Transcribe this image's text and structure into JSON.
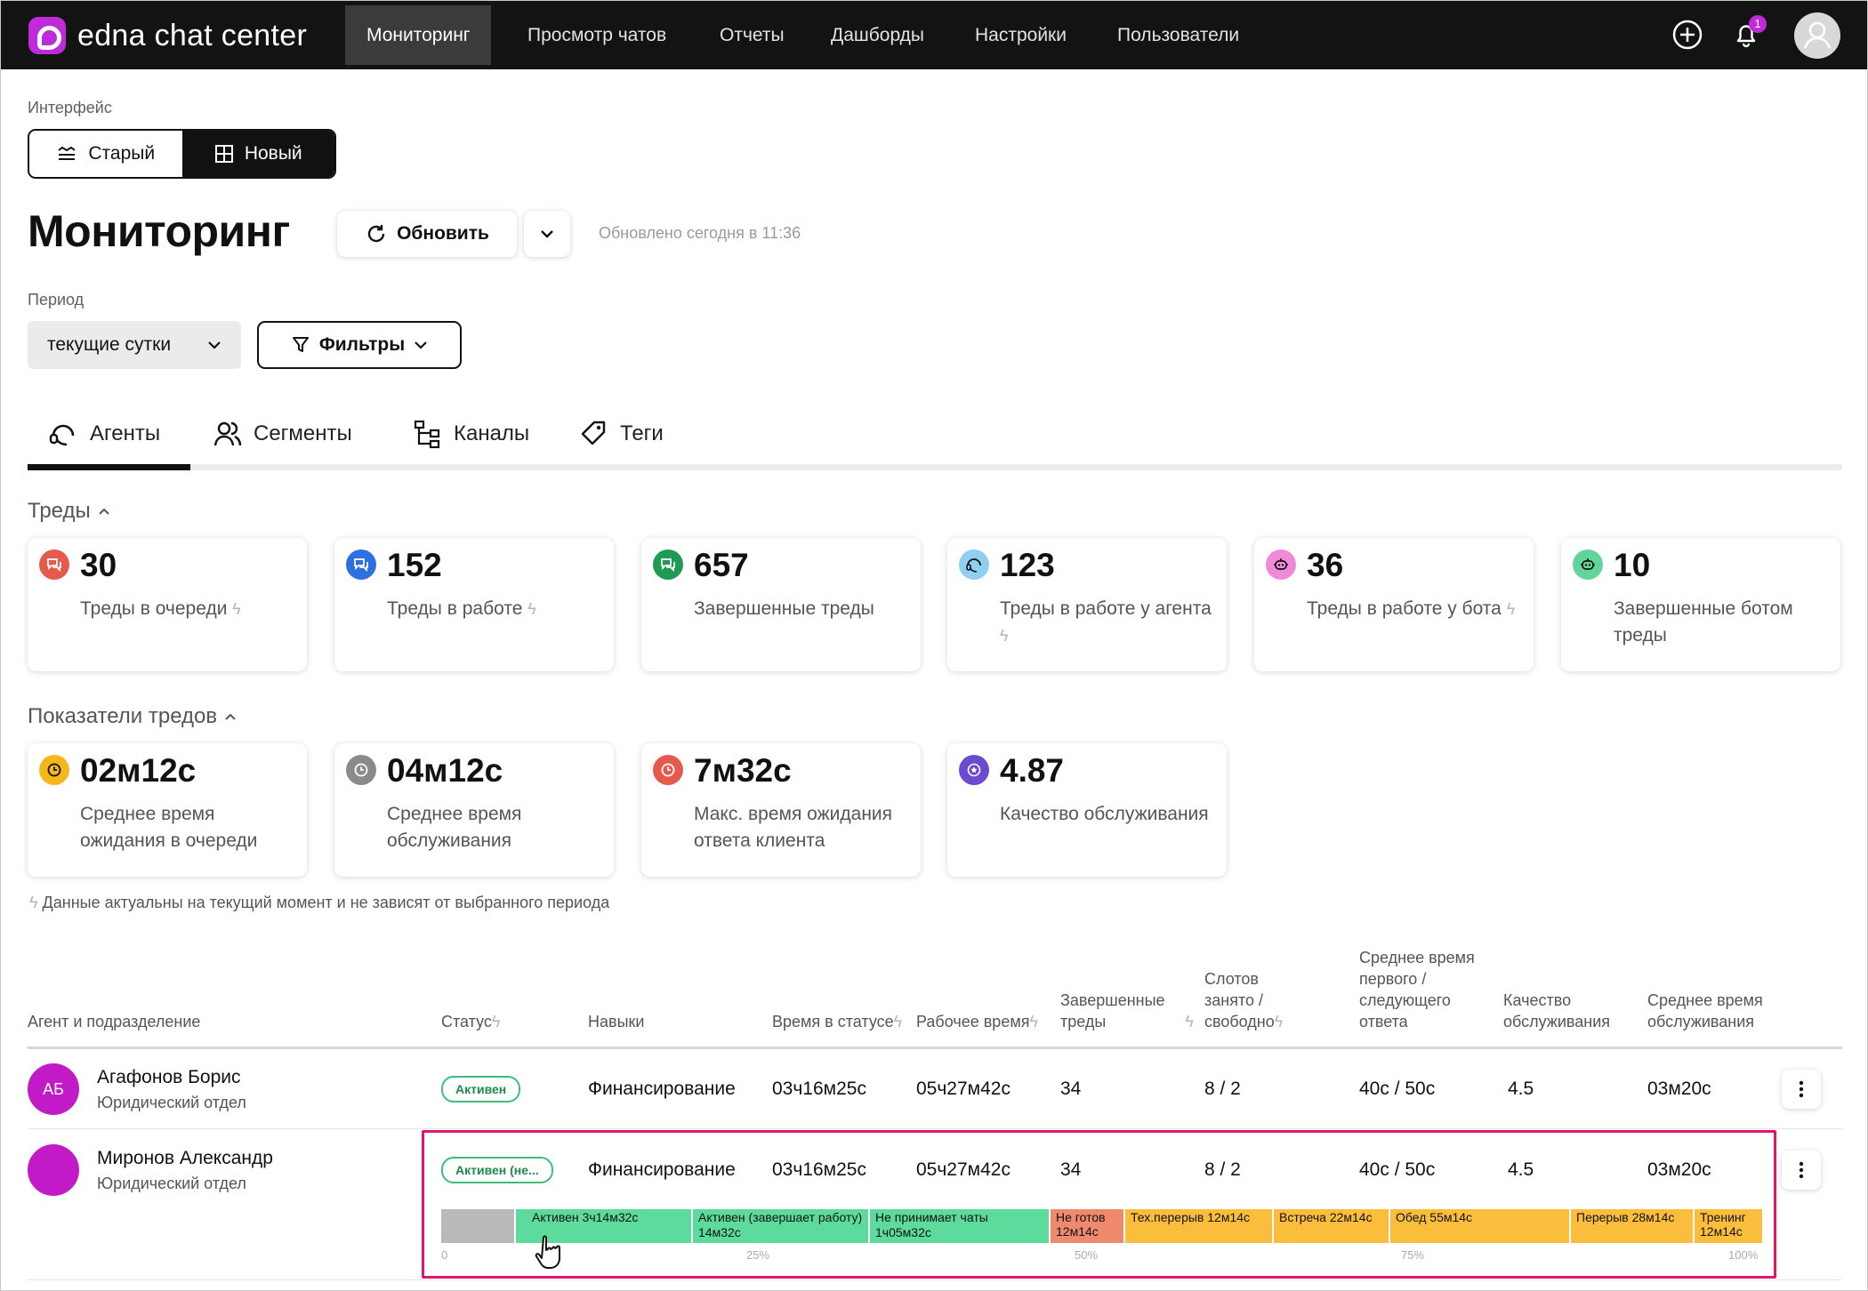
{
  "brand": {
    "name": "edna chat center"
  },
  "nav": {
    "items": [
      {
        "label": "Мониторинг",
        "active": true
      },
      {
        "label": "Просмотр чатов"
      },
      {
        "label": "Отчеты"
      },
      {
        "label": "Дашборды"
      },
      {
        "label": "Настройки"
      },
      {
        "label": "Пользователи"
      }
    ],
    "notifications_count": "1",
    "icons": [
      "add-circle-icon",
      "bell-icon",
      "user-avatar-icon"
    ]
  },
  "interface": {
    "label": "Интерфейс",
    "old_label": "Старый",
    "new_label": "Новый",
    "selected": "Новый"
  },
  "header": {
    "title": "Мониторинг",
    "refresh_label": "Обновить",
    "updated_text": "Обновлено сегодня в 11:36"
  },
  "period": {
    "label": "Период",
    "value": "текущие сутки",
    "filters_label": "Фильтры"
  },
  "tabs": [
    {
      "label": "Агенты",
      "icon": "headset-icon",
      "active": true
    },
    {
      "label": "Сегменты",
      "icon": "users-icon"
    },
    {
      "label": "Каналы",
      "icon": "tree-icon"
    },
    {
      "label": "Теги",
      "icon": "tag-icon"
    }
  ],
  "threads": {
    "section_label": "Треды",
    "cards": [
      {
        "value": "30",
        "label": "Треды в очереди",
        "icon": "chat-icon",
        "color": "#e55a4d",
        "realtime": true
      },
      {
        "value": "152",
        "label": "Треды в работе",
        "icon": "chat-icon",
        "color": "#2f6fe4",
        "realtime": true
      },
      {
        "value": "657",
        "label": "Завершенные треды",
        "icon": "chat-icon",
        "color": "#1f9a52",
        "realtime": false
      },
      {
        "value": "123",
        "label": "Треды в работе у агента",
        "icon": "headset-icon",
        "color": "#8fd0f2",
        "realtime": true
      },
      {
        "value": "36",
        "label": "Треды в работе у бота",
        "icon": "bot-icon",
        "color": "#f08ad8",
        "realtime": true
      },
      {
        "value": "10",
        "label": "Завершенные ботом треды",
        "icon": "bot-icon",
        "color": "#62d69a",
        "realtime": false
      }
    ]
  },
  "metrics": {
    "section_label": "Показатели тредов",
    "cards": [
      {
        "value": "02м12с",
        "label": "Среднее время ожидания в очереди",
        "icon": "clock-icon",
        "color": "#f5b81c"
      },
      {
        "value": "04м12с",
        "label": "Среднее время обслуживания",
        "icon": "clock-icon",
        "color": "#8a8a8a"
      },
      {
        "value": "7м32с",
        "label": "Макс. время ожидания ответа клиента",
        "icon": "clock-icon",
        "color": "#e55a4d"
      },
      {
        "value": "4.87",
        "label": "Качество обслуживания",
        "icon": "star-icon",
        "color": "#6b4bd0"
      }
    ],
    "footnote": "Данные актуальны на текущий момент и не зависят от выбранного периода"
  },
  "table": {
    "columns": {
      "agent": "Агент и подразделение",
      "status": "Статус",
      "skills": "Навыки",
      "time_in_status": "Время в статусе",
      "work_time": "Рабочее время",
      "completed_line1": "Завершенные",
      "completed_line2": "треды",
      "slots_line1": "Слотов",
      "slots_line2": "занято /",
      "slots_line3": "свободно",
      "first_line1": "Среднее время",
      "first_line2": "первого /",
      "first_line3": "следующего",
      "first_line4": "ответа",
      "quality_line1": "Качество",
      "quality_line2": "обслуживания",
      "avg_line1": "Среднее время",
      "avg_line2": "обслуживания"
    },
    "rows": [
      {
        "initials": "АБ",
        "name": "Агафонов Борис",
        "department": "Юридический отдел",
        "status": "Активен",
        "skills": "Финансирование",
        "time_in_status": "03ч16м25с",
        "work_time": "05ч27м42с",
        "completed": "34",
        "slots": "8 / 2",
        "first_response": "40с / 50с",
        "quality": "4.5",
        "avg_service": "03м20с"
      },
      {
        "initials": "",
        "name": "Миронов Александр",
        "department": "Юридический отдел",
        "status": "Активен (не...",
        "skills": "Финансирование",
        "time_in_status": "03ч16м25с",
        "work_time": "05ч27м42с",
        "completed": "34",
        "slots": "8 / 2",
        "first_response": "40с / 50с",
        "quality": "4.5",
        "avg_service": "03м20с"
      }
    ]
  },
  "timeline": {
    "segments": [
      {
        "label": "",
        "color": "#b9b9b9",
        "share": 4.2
      },
      {
        "label": "Активен 3ч14м32с",
        "color": "#5cdb9c",
        "share": 10.0
      },
      {
        "label": "Активен (завершает работу) 14м32с",
        "color": "#5cdb9c",
        "share": 10.0
      },
      {
        "label": "Не принимает чаты 1ч05м32с",
        "color": "#5cdb9c",
        "share": 10.2
      },
      {
        "label": "Не готов 12м14с",
        "color": "#f08a6e",
        "share": 4.2
      },
      {
        "label": "Тех.перерыв 12м14с",
        "color": "#fbbe3c",
        "share": 8.4
      },
      {
        "label": "Встреча 22м14с",
        "color": "#fbbe3c",
        "share": 6.6
      },
      {
        "label": "Обед 55м14с",
        "color": "#fbbe3c",
        "share": 10.2
      },
      {
        "label": "Перерыв 28м14с",
        "color": "#fbbe3c",
        "share": 7.0
      },
      {
        "label": "Тренинг 12м14с",
        "color": "#fbbe3c",
        "share": 3.9
      }
    ],
    "ticks": [
      "0",
      "25%",
      "50%",
      "75%",
      "100%"
    ]
  }
}
